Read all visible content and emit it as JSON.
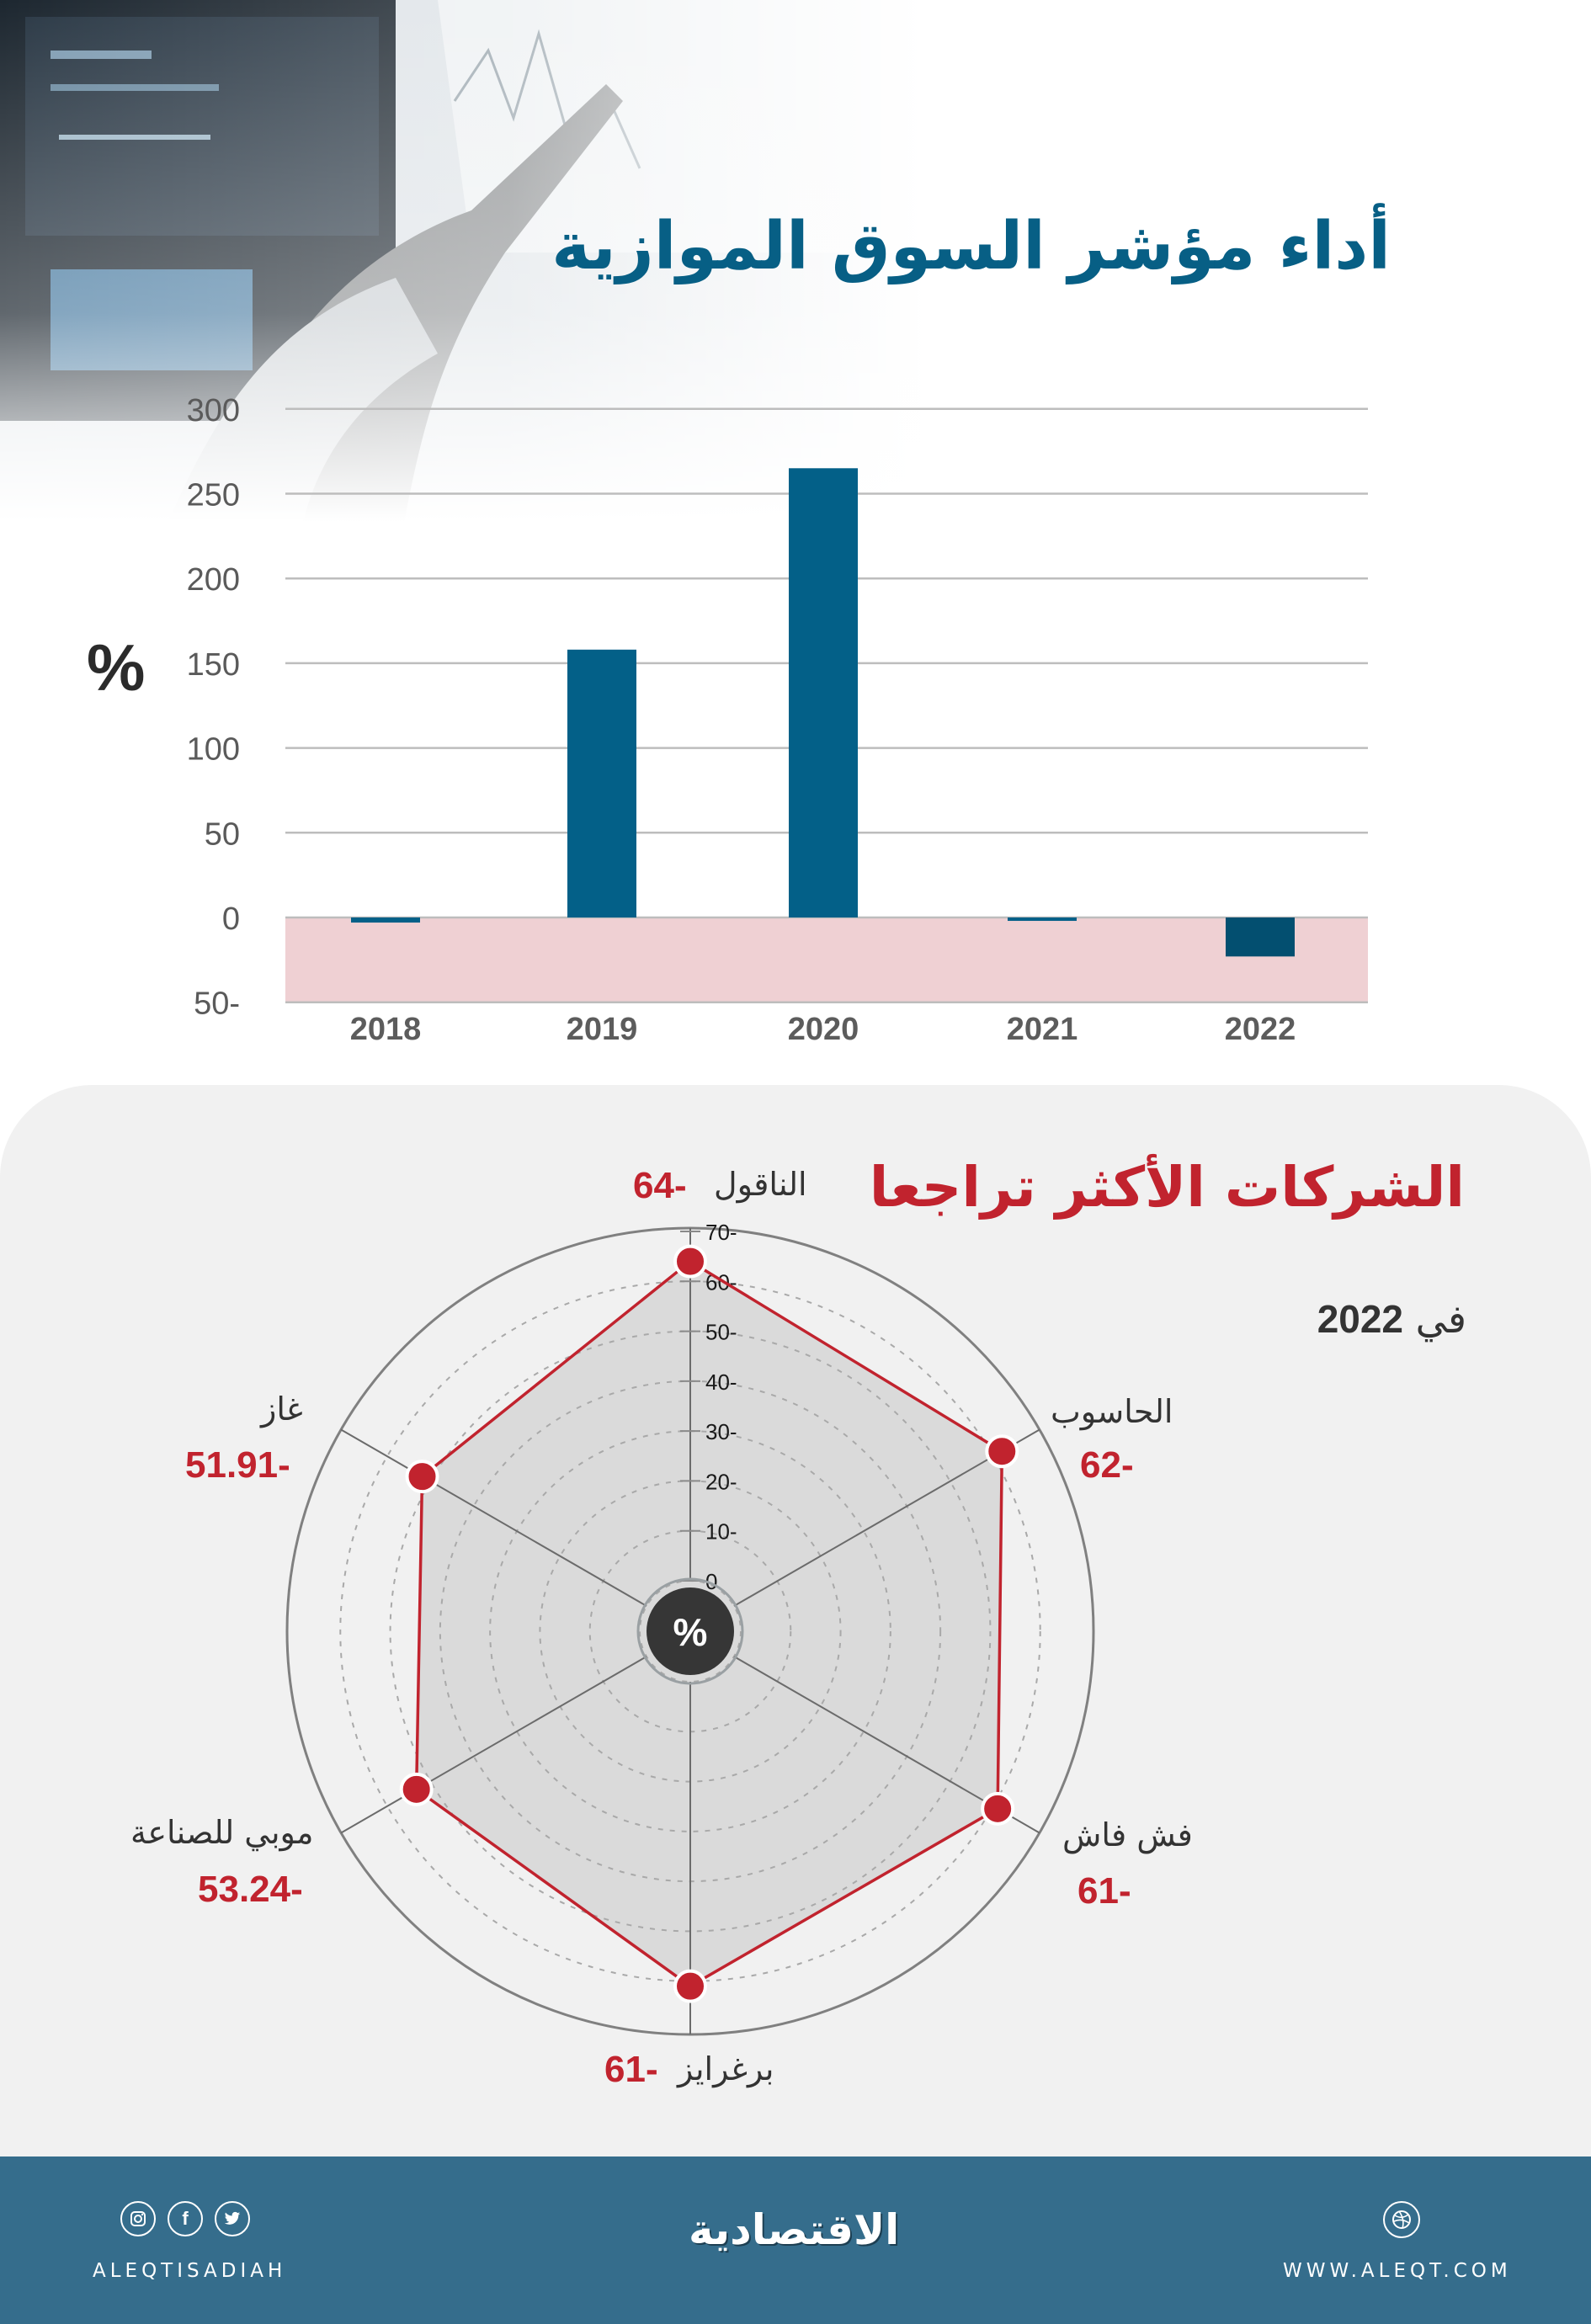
{
  "header": {
    "title": "أداء مؤشر السوق الموازية"
  },
  "colors": {
    "title_blue": "#075f85",
    "bar_blue": "#036088",
    "bar_negative": "#034f70",
    "negative_zone": "#efd0d3",
    "accent_red": "#c1232e",
    "panel_bg": "#f1f1f1",
    "footer_bg": "#356d8c"
  },
  "section2": {
    "title": "الشركات الأكثر تراجعا",
    "subtitle_prefix": "في",
    "subtitle_year": "2022",
    "center_label": "%"
  },
  "chart_data": [
    {
      "type": "bar",
      "title": "أداء مؤشر السوق الموازية",
      "categories": [
        "2018",
        "2019",
        "2020",
        "2021",
        "2022"
      ],
      "values": [
        -3,
        158,
        265,
        -2,
        -23
      ],
      "xlabel": "",
      "ylabel": "%",
      "ylim": [
        -50,
        300
      ],
      "yticks": [
        300,
        250,
        200,
        150,
        100,
        50,
        0,
        -50
      ],
      "ytick_labels": [
        "300",
        "250",
        "200",
        "150",
        "100",
        "50",
        "0",
        "50-"
      ],
      "grid": true,
      "negative_region_shaded": true
    },
    {
      "type": "radar",
      "title": "الشركات الأكثر تراجعا",
      "subtitle": "في 2022",
      "unit": "%",
      "categories": [
        "الناقول",
        "الحاسوب",
        "فش فاش",
        "برغرايز",
        "موبي للصناعة",
        "غاز"
      ],
      "values": [
        -64,
        -62,
        -61,
        -61,
        -53.24,
        -51.91
      ],
      "value_labels": [
        "64-",
        "62-",
        "61-",
        "61-",
        "53.24-",
        "51.91-"
      ],
      "rlim": [
        0,
        70
      ],
      "rticks": [
        0,
        10,
        20,
        30,
        40,
        50,
        60,
        70
      ],
      "rtick_labels": [
        "0",
        "10-",
        "20-",
        "30-",
        "40-",
        "50-",
        "60-",
        "70-"
      ]
    }
  ],
  "footer": {
    "handle": "ALEQTISADIAH",
    "logo_text": "الاقتصادية",
    "website": "WWW.ALEQT.COM",
    "social_icons": [
      "instagram-icon",
      "facebook-icon",
      "twitter-icon"
    ],
    "web_icon": "dribbble-globe-icon"
  }
}
